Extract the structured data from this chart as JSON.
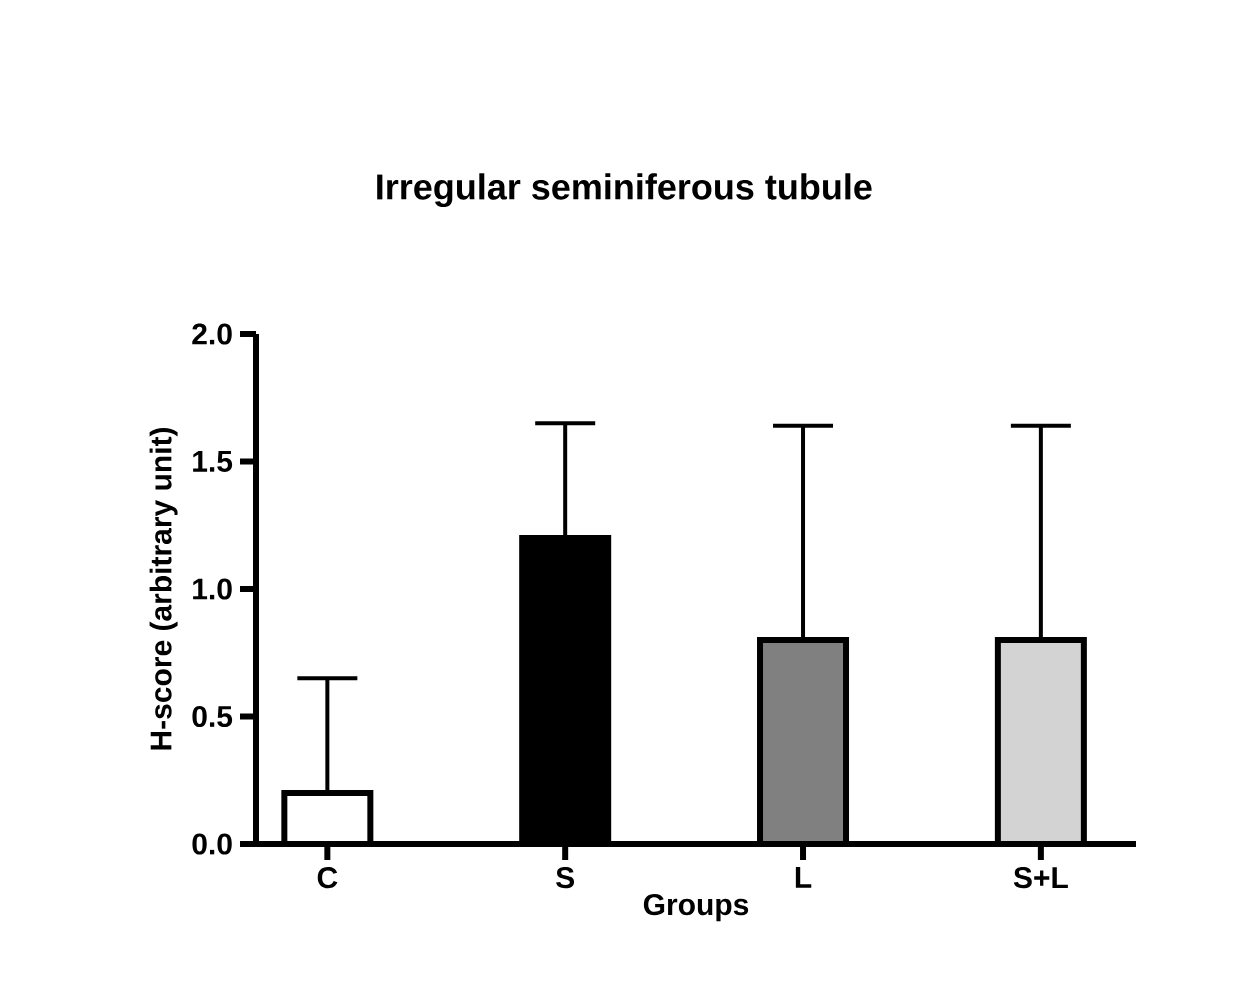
{
  "chart_data": {
    "type": "bar",
    "title": "Irregular seminiferous tubule",
    "xlabel": "Groups",
    "ylabel": "H-score (arbitrary unit)",
    "categories": [
      "C",
      "S",
      "L",
      "S+L"
    ],
    "values": [
      0.2,
      1.2,
      0.8,
      0.8
    ],
    "colors": [
      "#ffffff",
      "#000000",
      "#808080",
      "#d3d3d3"
    ],
    "errors": [
      [
        0.2,
        0.65
      ],
      [
        1.2,
        1.65
      ],
      [
        0.8,
        1.64
      ],
      [
        0.8,
        1.64
      ]
    ],
    "ylim": [
      0,
      2
    ],
    "yticks": [
      {
        "value": 0,
        "label": "0.0"
      },
      0.5,
      {
        "value": 1,
        "label": "1.0"
      },
      1.5,
      {
        "value": 2,
        "label": "2.0"
      }
    ]
  }
}
